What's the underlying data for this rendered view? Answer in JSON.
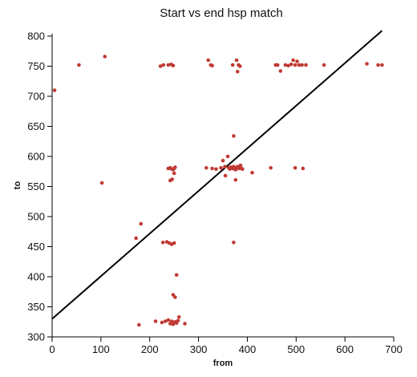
{
  "chart_data": {
    "type": "scatter",
    "title": "Start vs end hsp match",
    "xlabel": "from",
    "ylabel": "to",
    "xlim": [
      0,
      700
    ],
    "ylim": [
      300,
      800
    ],
    "x_ticks": [
      0,
      100,
      200,
      300,
      400,
      500,
      600,
      700
    ],
    "y_ticks": [
      300,
      350,
      400,
      450,
      500,
      550,
      600,
      650,
      700,
      750,
      800
    ],
    "grid": false,
    "legend": "none",
    "point_color": "#c03a35",
    "line_color": "#000000",
    "line": {
      "x": [
        0,
        676
      ],
      "y": [
        330,
        809
      ]
    },
    "series": [
      {
        "points": [
          [
            5,
            710
          ],
          [
            55,
            752
          ],
          [
            108,
            766
          ],
          [
            102,
            556
          ],
          [
            172,
            464
          ],
          [
            178,
            320
          ],
          [
            182,
            488
          ],
          [
            212,
            326
          ],
          [
            222,
            750
          ],
          [
            228,
            752
          ],
          [
            238,
            752
          ],
          [
            244,
            753
          ],
          [
            248,
            751
          ],
          [
            227,
            457
          ],
          [
            235,
            458
          ],
          [
            240,
            456
          ],
          [
            245,
            454
          ],
          [
            250,
            456
          ],
          [
            232,
            326
          ],
          [
            238,
            328
          ],
          [
            242,
            322
          ],
          [
            245,
            326
          ],
          [
            248,
            321
          ],
          [
            252,
            325
          ],
          [
            255,
            323
          ],
          [
            258,
            327
          ],
          [
            260,
            333
          ],
          [
            248,
            370
          ],
          [
            252,
            366
          ],
          [
            255,
            403
          ],
          [
            238,
            580
          ],
          [
            242,
            581
          ],
          [
            245,
            579
          ],
          [
            248,
            578
          ],
          [
            250,
            580
          ],
          [
            252,
            582
          ],
          [
            250,
            572
          ],
          [
            246,
            562
          ],
          [
            242,
            560
          ],
          [
            272,
            322
          ],
          [
            225,
            324
          ],
          [
            320,
            760
          ],
          [
            325,
            752
          ],
          [
            328,
            751
          ],
          [
            370,
            752
          ],
          [
            378,
            760
          ],
          [
            382,
            752
          ],
          [
            385,
            750
          ],
          [
            380,
            741
          ],
          [
            316,
            581
          ],
          [
            328,
            580
          ],
          [
            336,
            579
          ],
          [
            346,
            581
          ],
          [
            350,
            593
          ],
          [
            354,
            583
          ],
          [
            360,
            600
          ],
          [
            362,
            581
          ],
          [
            366,
            582
          ],
          [
            370,
            580
          ],
          [
            372,
            583
          ],
          [
            374,
            579
          ],
          [
            378,
            581
          ],
          [
            380,
            583
          ],
          [
            383,
            580
          ],
          [
            386,
            585
          ],
          [
            388,
            580
          ],
          [
            390,
            579
          ],
          [
            376,
            578
          ],
          [
            364,
            579
          ],
          [
            372,
            634
          ],
          [
            376,
            561
          ],
          [
            372,
            457
          ],
          [
            410,
            573
          ],
          [
            448,
            581
          ],
          [
            498,
            581
          ],
          [
            514,
            580
          ],
          [
            355,
            568
          ],
          [
            458,
            752
          ],
          [
            462,
            752
          ],
          [
            468,
            742
          ],
          [
            478,
            752
          ],
          [
            484,
            751
          ],
          [
            490,
            753
          ],
          [
            494,
            760
          ],
          [
            498,
            752
          ],
          [
            502,
            758
          ],
          [
            506,
            752
          ],
          [
            512,
            752
          ],
          [
            520,
            752
          ],
          [
            557,
            752
          ],
          [
            645,
            754
          ],
          [
            668,
            752
          ],
          [
            676,
            752
          ]
        ]
      }
    ]
  }
}
